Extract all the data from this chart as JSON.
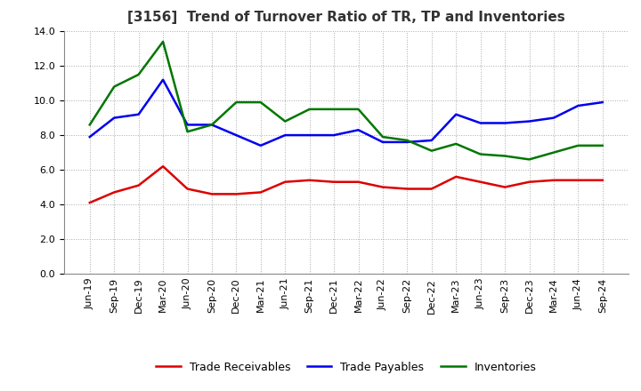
{
  "title": "[3156]  Trend of Turnover Ratio of TR, TP and Inventories",
  "x_labels": [
    "Jun-19",
    "Sep-19",
    "Dec-19",
    "Mar-20",
    "Jun-20",
    "Sep-20",
    "Dec-20",
    "Mar-21",
    "Jun-21",
    "Sep-21",
    "Dec-21",
    "Mar-22",
    "Jun-22",
    "Sep-22",
    "Dec-22",
    "Mar-23",
    "Jun-23",
    "Sep-23",
    "Dec-23",
    "Mar-24",
    "Jun-24",
    "Sep-24"
  ],
  "trade_receivables": [
    4.1,
    4.7,
    5.1,
    6.2,
    4.9,
    4.6,
    4.6,
    4.7,
    5.3,
    5.4,
    5.3,
    5.3,
    5.0,
    4.9,
    4.9,
    5.6,
    5.3,
    5.0,
    5.3,
    5.4,
    5.4,
    5.4
  ],
  "trade_payables": [
    7.9,
    9.0,
    9.2,
    11.2,
    8.6,
    8.6,
    8.0,
    7.4,
    8.0,
    8.0,
    8.0,
    8.3,
    7.6,
    7.6,
    7.7,
    9.2,
    8.7,
    8.7,
    8.8,
    9.0,
    9.7,
    9.9
  ],
  "inventories": [
    8.6,
    10.8,
    11.5,
    13.4,
    8.2,
    8.6,
    9.9,
    9.9,
    8.8,
    9.5,
    9.5,
    9.5,
    7.9,
    7.7,
    7.1,
    7.5,
    6.9,
    6.8,
    6.6,
    7.0,
    7.4,
    7.4
  ],
  "ylim": [
    0.0,
    14.0
  ],
  "yticks": [
    0.0,
    2.0,
    4.0,
    6.0,
    8.0,
    10.0,
    12.0,
    14.0
  ],
  "line_colors": {
    "trade_receivables": "#dd0000",
    "trade_payables": "#0000ee",
    "inventories": "#007700"
  },
  "line_width": 1.8,
  "background_color": "#ffffff",
  "plot_bg_color": "#ffffff",
  "grid_color": "#aaaaaa",
  "legend_labels": [
    "Trade Receivables",
    "Trade Payables",
    "Inventories"
  ],
  "title_fontsize": 11,
  "tick_fontsize": 8,
  "legend_fontsize": 9
}
